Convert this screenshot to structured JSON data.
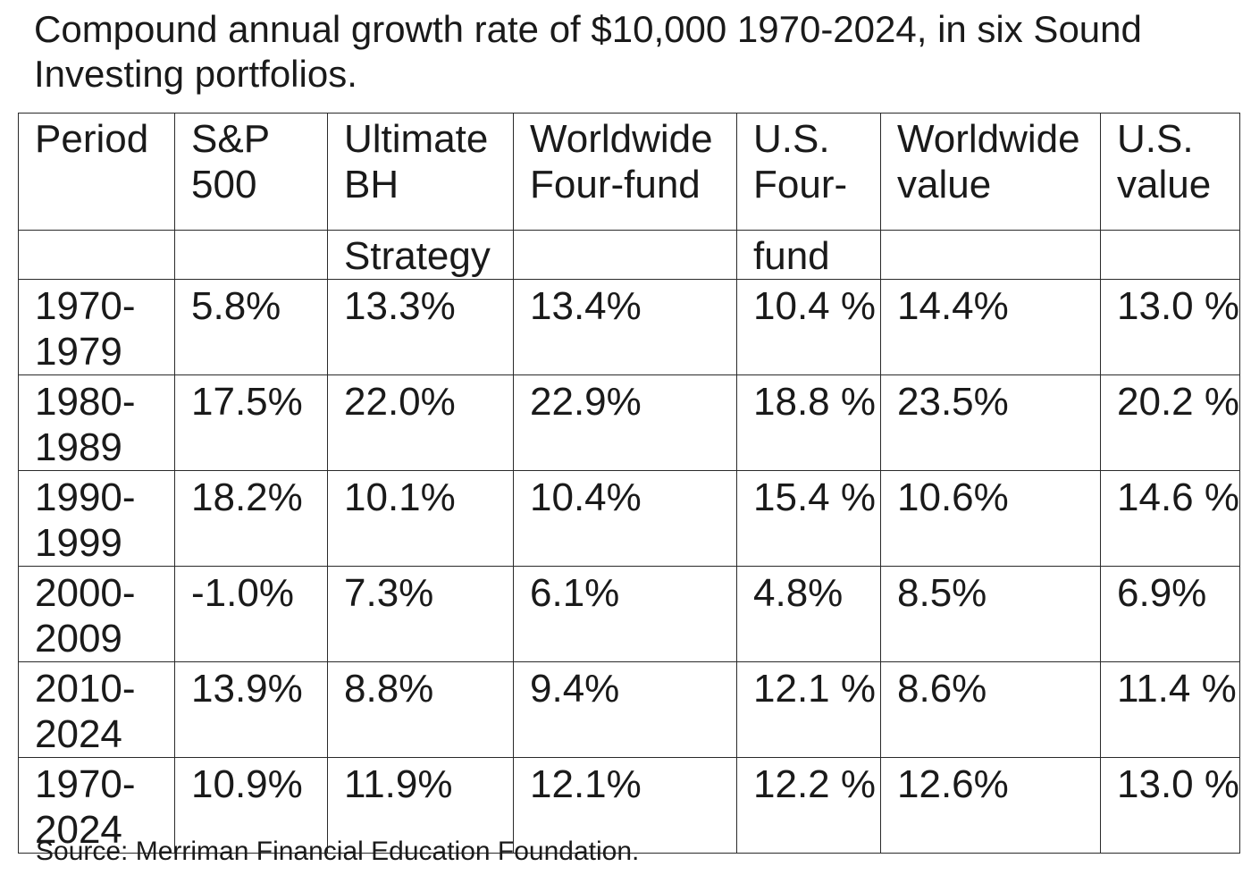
{
  "title": "Compound annual growth rate of $10,000 1970-2024, in six Sound Investing portfolios.",
  "table": {
    "headers": [
      {
        "line1": "Period",
        "line2": ""
      },
      {
        "line1": "S&P 500",
        "line2": ""
      },
      {
        "line1": "Ultimate BH",
        "line2": "Strategy"
      },
      {
        "line1": "Worldwide Four-fund",
        "line2": ""
      },
      {
        "line1": "U.S. Four-",
        "line2": "fund"
      },
      {
        "line1": "Worldwide value",
        "line2": ""
      },
      {
        "line1": "U.S. value",
        "line2": ""
      }
    ],
    "rows": [
      {
        "period": "1970-1979",
        "values": [
          "5.8%",
          "13.3%",
          "13.4%",
          "10.4 %",
          "14.4%",
          "13.0 %"
        ]
      },
      {
        "period": "1980-1989",
        "values": [
          "17.5%",
          "22.0%",
          "22.9%",
          "18.8 %",
          "23.5%",
          "20.2 %"
        ]
      },
      {
        "period": "1990-1999",
        "values": [
          "18.2%",
          "10.1%",
          "10.4%",
          "15.4 %",
          "10.6%",
          "14.6 %"
        ]
      },
      {
        "period": "2000-2009",
        "values": [
          "-1.0%",
          "7.3%",
          "6.1%",
          "4.8%",
          "8.5%",
          "6.9%"
        ]
      },
      {
        "period": "2010-2024",
        "values": [
          "13.9%",
          "8.8%",
          "9.4%",
          "12.1 %",
          "8.6%",
          "11.4 %"
        ]
      },
      {
        "period": "1970-2024",
        "values": [
          "10.9%",
          "11.9%",
          "12.1%",
          "12.2 %",
          "12.6%",
          "13.0 %"
        ]
      }
    ]
  },
  "source": "Source: Merriman Financial Education Foundation."
}
